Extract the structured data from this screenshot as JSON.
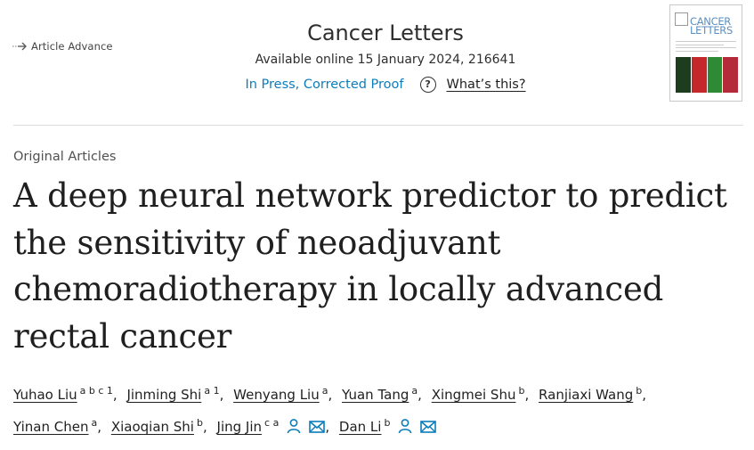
{
  "header": {
    "badge": "Article Advance",
    "journal": "Cancer Letters",
    "available": "Available online 15 January 2024, 216641",
    "status": "In Press, Corrected Proof",
    "help_glyph": "?",
    "whats_this": "What’s this?",
    "cover_title_line1": "CANCER",
    "cover_title_line2": "LETTERS"
  },
  "article": {
    "section": "Original Articles",
    "title": "A deep neural network predictor to predict the sensitivity of neoadjuvant chemoradiotherapy in locally advanced rectal cancer"
  },
  "authors": [
    {
      "name": "Yuhao Liu",
      "aff": "a b c 1"
    },
    {
      "name": "Jinming Shi",
      "aff": "a 1"
    },
    {
      "name": "Wenyang Liu",
      "aff": "a"
    },
    {
      "name": "Yuan Tang",
      "aff": "a"
    },
    {
      "name": "Xingmei Shu",
      "aff": "b"
    },
    {
      "name": "Ranjiaxi Wang",
      "aff": "b"
    },
    {
      "name": "Yinan Chen",
      "aff": "a"
    },
    {
      "name": "Xiaoqian Shi",
      "aff": "b"
    },
    {
      "name": "Jing Jin",
      "aff": "c a"
    },
    {
      "name": "Dan Li",
      "aff": "b"
    }
  ],
  "icons": {
    "arrow": "arrow-icon",
    "person": "person-icon",
    "mail": "mail-icon"
  },
  "colors": {
    "link_blue": "#0c7dbb",
    "icon_blue": "#0c7dbb",
    "text": "#1f1f1f"
  }
}
